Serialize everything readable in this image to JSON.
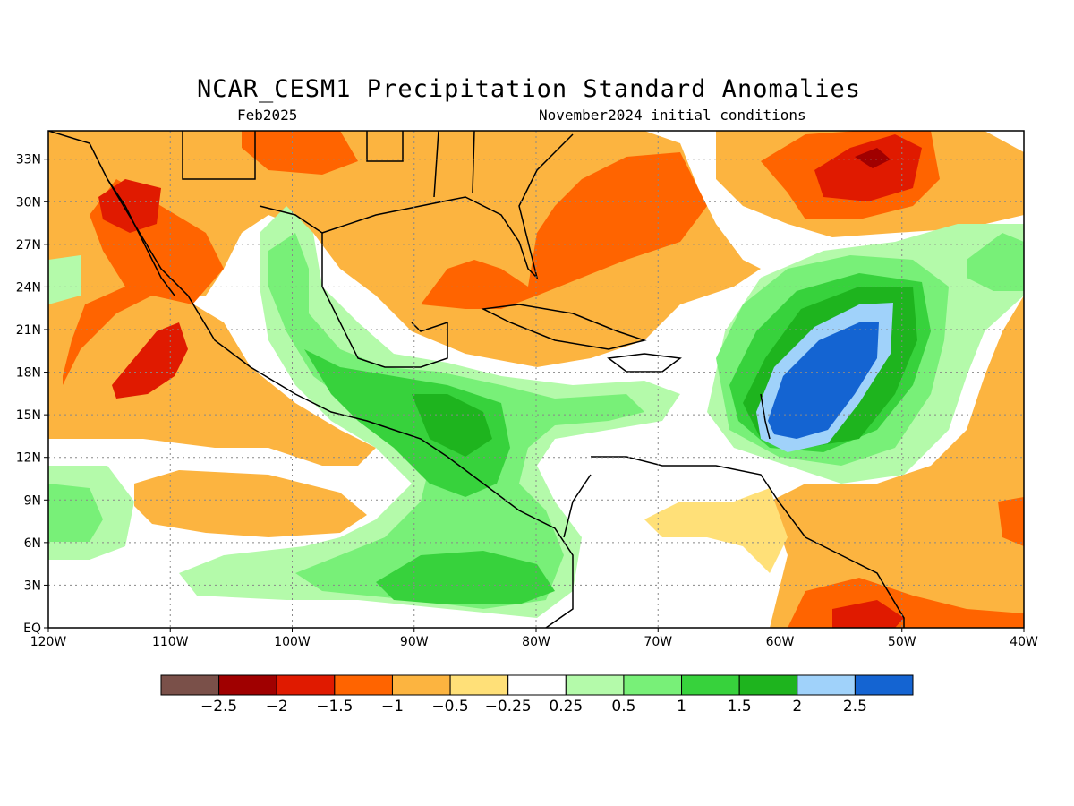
{
  "title": "NCAR_CESM1 Precipitation Standard Anomalies",
  "subtitle_left": "Feb2025",
  "subtitle_right": "November2024 initial conditions",
  "map": {
    "lon_range": [
      -120,
      -40
    ],
    "lat_range": [
      0,
      35
    ],
    "lat_ticks": [
      {
        "value": 33,
        "label": "33N"
      },
      {
        "value": 30,
        "label": "30N"
      },
      {
        "value": 27,
        "label": "27N"
      },
      {
        "value": 24,
        "label": "24N"
      },
      {
        "value": 21,
        "label": "21N"
      },
      {
        "value": 18,
        "label": "18N"
      },
      {
        "value": 15,
        "label": "15N"
      },
      {
        "value": 12,
        "label": "12N"
      },
      {
        "value": 9,
        "label": "9N"
      },
      {
        "value": 6,
        "label": "6N"
      },
      {
        "value": 3,
        "label": "3N"
      },
      {
        "value": 0,
        "label": "EQ"
      }
    ],
    "lon_ticks": [
      {
        "value": -120,
        "label": "120W"
      },
      {
        "value": -110,
        "label": "110W"
      },
      {
        "value": -100,
        "label": "100W"
      },
      {
        "value": -90,
        "label": "90W"
      },
      {
        "value": -80,
        "label": "80W"
      },
      {
        "value": -70,
        "label": "70W"
      },
      {
        "value": -60,
        "label": "60W"
      },
      {
        "value": -50,
        "label": "50W"
      },
      {
        "value": -40,
        "label": "40W"
      }
    ],
    "grid": "dotted"
  },
  "colorbar": {
    "colors": [
      "#7a5049",
      "#a00000",
      "#e01a00",
      "#ff6400",
      "#fcb440",
      "#ffe078",
      "#ffffff",
      "#b4faaa",
      "#78f078",
      "#37d23c",
      "#1eb41e",
      "#a0d2fa",
      "#1464d2"
    ],
    "labels": [
      "-2.5",
      "-2",
      "-1.5",
      "-1",
      "-0.5",
      "-0.25",
      "0.25",
      "0.5",
      "1",
      "1.5",
      "2",
      "2.5"
    ]
  }
}
